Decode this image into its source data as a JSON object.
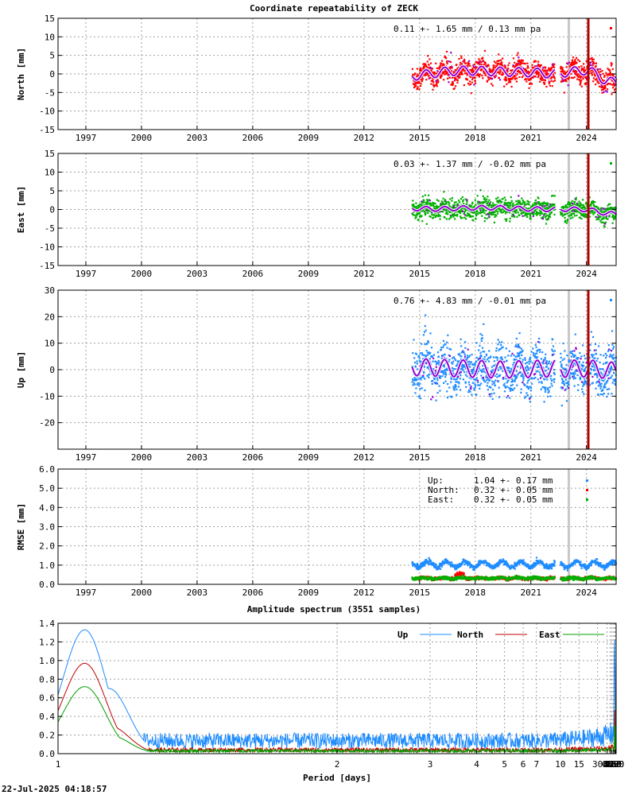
{
  "title": "Coordinate repeatability of ZECK",
  "timestamp": "22-Jul-2025 04:18:57",
  "colors": {
    "north": "#ff0000",
    "east": "#00b000",
    "up": "#1e8cff",
    "model": "#9400d3",
    "gap": "#c8c8c8",
    "event": "#b00000"
  },
  "chart_data": [
    {
      "type": "scatter",
      "panel": "north",
      "ylabel": "North [mm]",
      "ylim": [
        -15,
        15
      ],
      "yticks": [
        -15,
        -10,
        -5,
        0,
        5,
        10,
        15
      ],
      "xlim": [
        1995.5,
        2025.6
      ],
      "xticks": [
        1997,
        2000,
        2003,
        2006,
        2009,
        2012,
        2015,
        2018,
        2021,
        2024
      ],
      "stat_label": "0.11 +- 1.65 mm /  0.13 mm pa",
      "data_start": 2014.6,
      "data_end": 2025.6,
      "gap": [
        2022.3,
        2022.6
      ],
      "gray_line": 2023.05,
      "event_line": 2024.1,
      "seasonal_amplitude": 1.2,
      "trend": [
        [
          2014.6,
          -0.6
        ],
        [
          2015.5,
          0.0
        ],
        [
          2016.5,
          0.7
        ],
        [
          2017.5,
          0.9
        ],
        [
          2018.5,
          0.8
        ],
        [
          2019.5,
          0.6
        ],
        [
          2020.5,
          0.5
        ],
        [
          2021.5,
          0.3
        ],
        [
          2022.3,
          0.0
        ],
        [
          2022.6,
          0.2
        ],
        [
          2023.5,
          0.8
        ],
        [
          2024.1,
          1.0
        ],
        [
          2024.5,
          0.0
        ],
        [
          2025.0,
          -1.8
        ],
        [
          2025.6,
          -2.4
        ]
      ],
      "scatter_sigma": 1.65
    },
    {
      "type": "scatter",
      "panel": "east",
      "ylabel": "East [mm]",
      "ylim": [
        -15,
        15
      ],
      "yticks": [
        -15,
        -10,
        -5,
        0,
        5,
        10,
        15
      ],
      "xlim": [
        1995.5,
        2025.6
      ],
      "xticks": [
        1997,
        2000,
        2003,
        2006,
        2009,
        2012,
        2015,
        2018,
        2021,
        2024
      ],
      "stat_label": "0.03 +- 1.37 mm / -0.02 mm pa",
      "data_start": 2014.6,
      "data_end": 2025.6,
      "gap": [
        2022.3,
        2022.6
      ],
      "gray_line": 2023.05,
      "event_line": 2024.1,
      "seasonal_amplitude": 0.6,
      "trend": [
        [
          2014.6,
          0.3
        ],
        [
          2016.0,
          0.1
        ],
        [
          2017.5,
          0.4
        ],
        [
          2019.0,
          0.5
        ],
        [
          2020.5,
          0.2
        ],
        [
          2022.3,
          0.0
        ],
        [
          2022.6,
          0.1
        ],
        [
          2024.1,
          0.0
        ],
        [
          2025.0,
          -1.0
        ],
        [
          2025.6,
          -1.3
        ]
      ],
      "scatter_sigma": 1.37
    },
    {
      "type": "scatter",
      "panel": "up",
      "ylabel": "Up [mm]",
      "ylim": [
        -30,
        30
      ],
      "yticks": [
        -20,
        -10,
        0,
        10,
        20,
        30
      ],
      "xlim": [
        1995.5,
        2025.6
      ],
      "xticks": [
        1997,
        2000,
        2003,
        2006,
        2009,
        2012,
        2015,
        2018,
        2021,
        2024
      ],
      "stat_label": "0.76 +- 4.83 mm / -0.01 mm pa",
      "data_start": 2014.6,
      "data_end": 2025.6,
      "gap": [
        2022.3,
        2022.6
      ],
      "gray_line": 2023.05,
      "event_line": 2024.1,
      "seasonal_amplitude": 3.2,
      "trend": [
        [
          2014.6,
          1.0
        ],
        [
          2017.0,
          0.5
        ],
        [
          2019.5,
          0.0
        ],
        [
          2022.3,
          0.5
        ],
        [
          2022.6,
          0.3
        ],
        [
          2024.1,
          0.5
        ],
        [
          2025.6,
          -0.5
        ]
      ],
      "scatter_sigma": 4.83
    },
    {
      "type": "scatter",
      "panel": "rmse",
      "ylabel": "RMSE [mm]",
      "ylim": [
        0,
        6
      ],
      "yticks": [
        0.0,
        1.0,
        2.0,
        3.0,
        4.0,
        5.0,
        6.0
      ],
      "xlim": [
        1995.5,
        2025.6
      ],
      "xticks": [
        1997,
        2000,
        2003,
        2006,
        2009,
        2012,
        2015,
        2018,
        2021,
        2024
      ],
      "data_start": 2014.6,
      "data_end": 2025.6,
      "gap": [
        2022.3,
        2022.6
      ],
      "gray_line": 2023.05,
      "legend": [
        {
          "name": "Up:",
          "stat": "1.04 +- 0.17 mm",
          "mean": 1.04,
          "color": "#1e8cff"
        },
        {
          "name": "North:",
          "stat": "0.32 +- 0.05 mm",
          "mean": 0.32,
          "color": "#ff0000"
        },
        {
          "name": "East:",
          "stat": "0.32 +- 0.05 mm",
          "mean": 0.32,
          "color": "#00b000"
        }
      ]
    },
    {
      "type": "line",
      "panel": "spectrum",
      "title": "Amplitude spectrum (3551 samples)",
      "xlabel": "Period [days]",
      "xscale": "reciprocal",
      "xlim": [
        1,
        8760
      ],
      "ylim": [
        0,
        1.4
      ],
      "yticks": [
        0.0,
        0.2,
        0.4,
        0.6,
        0.8,
        1.0,
        1.2,
        1.4
      ],
      "xticks": [
        1,
        2,
        3,
        4,
        5,
        6,
        7,
        10,
        15,
        30,
        61,
        91,
        122,
        183,
        365,
        730,
        2190,
        4380,
        8760
      ],
      "legend_placement": "top-right",
      "series": [
        {
          "name": "Up",
          "color": "#1e8cff",
          "peaks": [
            [
              1.05,
              1.33
            ],
            [
              1.1,
              0.7
            ],
            [
              365,
              1.22
            ],
            [
              300,
              1.25
            ],
            [
              420,
              1.2
            ],
            [
              500,
              0.7
            ],
            [
              600,
              0.45
            ],
            [
              730,
              0.32
            ],
            [
              1095,
              0.55
            ],
            [
              1460,
              0.38
            ],
            [
              2190,
              0.92
            ],
            [
              4380,
              0.52
            ]
          ],
          "noise_level": 0.14
        },
        {
          "name": "North",
          "color": "#c00000",
          "peaks": [
            [
              1.05,
              0.97
            ],
            [
              1.1,
              0.3
            ],
            [
              365,
              0.47
            ],
            [
              730,
              0.1
            ],
            [
              1460,
              0.75
            ],
            [
              2190,
              0.57
            ],
            [
              4380,
              0.95
            ]
          ],
          "noise_level": 0.04
        },
        {
          "name": "East",
          "color": "#00a000",
          "peaks": [
            [
              1.05,
              0.72
            ],
            [
              1.1,
              0.2
            ],
            [
              365,
              0.3
            ],
            [
              730,
              0.1
            ],
            [
              1460,
              0.15
            ],
            [
              2190,
              0.4
            ],
            [
              4380,
              0.72
            ]
          ],
          "noise_level": 0.03
        }
      ]
    }
  ]
}
